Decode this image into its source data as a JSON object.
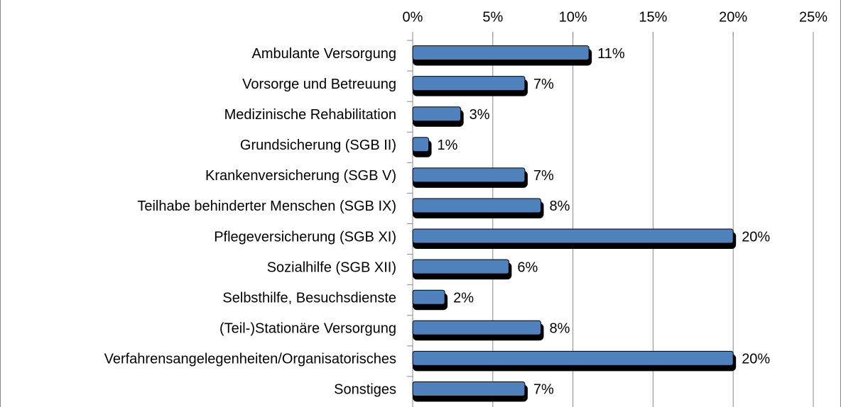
{
  "chart_data": {
    "type": "bar",
    "orientation": "horizontal",
    "categories": [
      "Ambulante Versorgung",
      "Vorsorge und Betreuung",
      "Medizinische Rehabilitation",
      "Grundsicherung (SGB II)",
      "Krankenversicherung (SGB V)",
      "Teilhabe behinderter Menschen (SGB IX)",
      "Pflegeversicherung (SGB XI)",
      "Sozialhilfe (SGB XII)",
      "Selbsthilfe, Besuchsdienste",
      "(Teil-)Stationäre Versorgung",
      "Verfahrensangelegenheiten/Organisatorisches",
      "Sonstiges"
    ],
    "values": [
      11,
      7,
      3,
      1,
      7,
      8,
      20,
      6,
      2,
      8,
      20,
      7
    ],
    "value_labels": [
      "11%",
      "7%",
      "3%",
      "1%",
      "7%",
      "8%",
      "20%",
      "6%",
      "2%",
      "8%",
      "20%",
      "7%"
    ],
    "color": "#4f81bd",
    "xlim": [
      0,
      25
    ],
    "xticks": [
      {
        "value": 0,
        "label": "0%"
      },
      {
        "value": 5,
        "label": "5%"
      },
      {
        "value": 10,
        "label": "10%"
      },
      {
        "value": 15,
        "label": "15%"
      },
      {
        "value": 20,
        "label": "20%"
      },
      {
        "value": 25,
        "label": "25%"
      }
    ],
    "grid": true
  }
}
